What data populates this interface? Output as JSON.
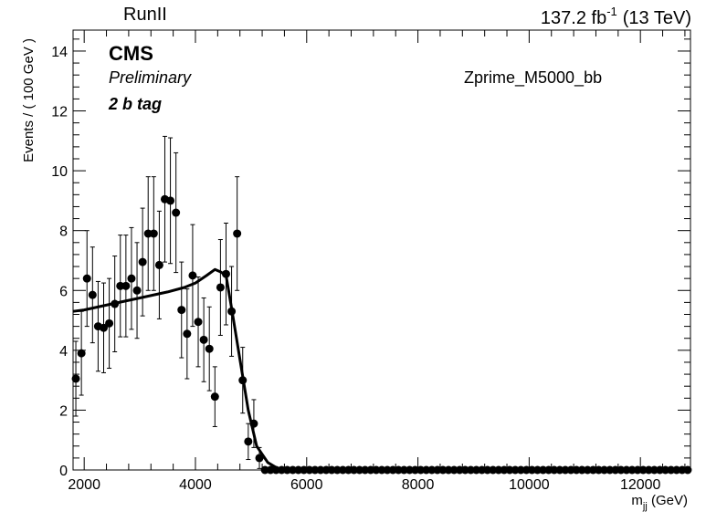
{
  "header": {
    "left_label": "RunII",
    "lumi_value": "137.2 fb",
    "lumi_exponent": "-1",
    "lumi_energy": "(13 TeV)"
  },
  "labels": {
    "experiment": "CMS",
    "status": "Preliminary",
    "category": "2 b tag",
    "sample": "Zprime_M5000_bb"
  },
  "axes": {
    "ylabel": "Events / ( 100 GeV )",
    "xlabel_main": "m",
    "xlabel_sub": "jj",
    "xlabel_unit": " (GeV)"
  },
  "chart_data": {
    "type": "scatter",
    "xlim": [
      1800,
      12900
    ],
    "ylim": [
      0,
      14.7
    ],
    "x_ticks": [
      2000,
      4000,
      6000,
      8000,
      10000,
      12000
    ],
    "y_ticks": [
      0,
      2,
      4,
      6,
      8,
      10,
      12,
      14
    ],
    "grid": false,
    "series": [
      {
        "kind": "points-with-errors",
        "color": "#000000",
        "x": [
          1850,
          1950,
          2050,
          2150,
          2250,
          2350,
          2450,
          2550,
          2650,
          2750,
          2850,
          2950,
          3050,
          3150,
          3250,
          3350,
          3450,
          3550,
          3650,
          3750,
          3850,
          3950,
          4050,
          4150,
          4250,
          4350,
          4450,
          4550,
          4650,
          4750,
          4850,
          4950,
          5050,
          5150
        ],
        "y": [
          3.05,
          3.9,
          6.4,
          5.85,
          4.8,
          4.75,
          4.9,
          5.55,
          6.15,
          6.15,
          6.4,
          6.0,
          6.95,
          7.9,
          7.9,
          6.85,
          9.05,
          9.0,
          8.6,
          5.35,
          4.55,
          6.5,
          4.95,
          4.35,
          4.05,
          2.45,
          6.1,
          6.55,
          5.3,
          7.9,
          3.0,
          0.95,
          1.55,
          0.4
        ],
        "yerr": [
          1.25,
          1.4,
          1.6,
          1.6,
          1.5,
          1.5,
          1.5,
          1.6,
          1.7,
          1.7,
          1.7,
          1.6,
          1.8,
          1.9,
          1.9,
          1.8,
          2.1,
          2.1,
          2.0,
          1.6,
          1.5,
          1.7,
          1.5,
          1.4,
          1.4,
          1.0,
          1.6,
          1.7,
          1.5,
          1.9,
          1.1,
          0.6,
          0.8,
          0.35
        ],
        "zero_points_x_start": 5250,
        "zero_points_x_end": 12850,
        "zero_points_step": 100
      },
      {
        "kind": "fit-curve",
        "color": "#000000",
        "x": [
          1800,
          2000,
          2500,
          3000,
          3500,
          3800,
          4000,
          4200,
          4350,
          4450,
          4550,
          4650,
          4800,
          4950,
          5100,
          5300,
          5500,
          5700,
          5900,
          12900
        ],
        "y": [
          5.3,
          5.35,
          5.55,
          5.75,
          5.95,
          6.1,
          6.25,
          6.5,
          6.7,
          6.62,
          6.5,
          5.4,
          3.7,
          2.0,
          0.8,
          0.25,
          0.03,
          0.0,
          0.0,
          0.0
        ]
      }
    ]
  }
}
